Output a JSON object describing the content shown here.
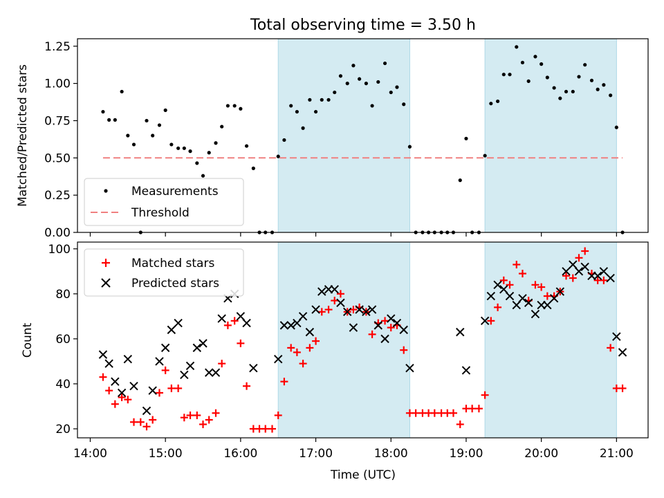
{
  "chart_data": {
    "type": "scatter",
    "title": "Total observing time = 3.50 h",
    "xlabel": "Time (UTC)",
    "x_ticks": [
      "14:00",
      "15:00",
      "16:00",
      "17:00",
      "18:00",
      "19:00",
      "20:00",
      "21:00"
    ],
    "x_range_hours": [
      13.83,
      21.42
    ],
    "shaded_intervals_hours": [
      [
        16.5,
        18.25
      ],
      [
        19.25,
        21.0
      ]
    ],
    "shade_color": "#add8e6",
    "top": {
      "ylabel": "Matched/Predicted stars",
      "ylim": [
        0,
        1.3
      ],
      "y_ticks": [
        "0.00",
        "0.25",
        "0.50",
        "0.75",
        "1.00",
        "1.25"
      ],
      "threshold": 0.5,
      "threshold_x_range_hours": [
        14.17,
        21.08
      ],
      "legend": {
        "placement": "lower-left",
        "entries": [
          "Measurements",
          "Threshold"
        ]
      },
      "measurement_color": "#000000",
      "threshold_color": "#f08080",
      "measurements": [
        [
          14.17,
          0.81
        ],
        [
          14.25,
          0.755
        ],
        [
          14.33,
          0.755
        ],
        [
          14.42,
          0.945
        ],
        [
          14.5,
          0.65
        ],
        [
          14.58,
          0.59
        ],
        [
          14.67,
          0.0
        ],
        [
          14.75,
          0.75
        ],
        [
          14.83,
          0.65
        ],
        [
          14.92,
          0.72
        ],
        [
          15.0,
          0.82
        ],
        [
          15.08,
          0.59
        ],
        [
          15.17,
          0.565
        ],
        [
          15.25,
          0.565
        ],
        [
          15.33,
          0.545
        ],
        [
          15.42,
          0.465
        ],
        [
          15.5,
          0.38
        ],
        [
          15.58,
          0.535
        ],
        [
          15.67,
          0.6
        ],
        [
          15.75,
          0.71
        ],
        [
          15.83,
          0.85
        ],
        [
          15.92,
          0.85
        ],
        [
          16.0,
          0.83
        ],
        [
          16.08,
          0.58
        ],
        [
          16.17,
          0.43
        ],
        [
          16.25,
          0.0
        ],
        [
          16.33,
          0.0
        ],
        [
          16.42,
          0.0
        ],
        [
          16.5,
          0.51
        ],
        [
          16.58,
          0.62
        ],
        [
          16.67,
          0.85
        ],
        [
          16.75,
          0.81
        ],
        [
          16.83,
          0.7
        ],
        [
          16.92,
          0.89
        ],
        [
          17.0,
          0.81
        ],
        [
          17.08,
          0.89
        ],
        [
          17.17,
          0.89
        ],
        [
          17.25,
          0.94
        ],
        [
          17.33,
          1.05
        ],
        [
          17.42,
          1.0
        ],
        [
          17.5,
          1.12
        ],
        [
          17.58,
          1.03
        ],
        [
          17.67,
          1.0
        ],
        [
          17.75,
          0.85
        ],
        [
          17.83,
          1.01
        ],
        [
          17.92,
          1.135
        ],
        [
          18.0,
          0.94
        ],
        [
          18.08,
          0.975
        ],
        [
          18.17,
          0.86
        ],
        [
          18.25,
          0.575
        ],
        [
          18.33,
          0.0
        ],
        [
          18.42,
          0.0
        ],
        [
          18.5,
          0.0
        ],
        [
          18.58,
          0.0
        ],
        [
          18.67,
          0.0
        ],
        [
          18.75,
          0.0
        ],
        [
          18.83,
          0.0
        ],
        [
          18.92,
          0.35
        ],
        [
          19.0,
          0.63
        ],
        [
          19.08,
          0.0
        ],
        [
          19.17,
          0.0
        ],
        [
          19.25,
          0.515
        ],
        [
          19.33,
          0.865
        ],
        [
          19.42,
          0.88
        ],
        [
          19.5,
          1.06
        ],
        [
          19.58,
          1.06
        ],
        [
          19.67,
          1.245
        ],
        [
          19.75,
          1.14
        ],
        [
          19.83,
          1.015
        ],
        [
          19.92,
          1.18
        ],
        [
          20.0,
          1.13
        ],
        [
          20.08,
          1.04
        ],
        [
          20.17,
          0.97
        ],
        [
          20.25,
          0.9
        ],
        [
          20.33,
          0.945
        ],
        [
          20.42,
          0.945
        ],
        [
          20.5,
          1.045
        ],
        [
          20.58,
          1.125
        ],
        [
          20.67,
          1.02
        ],
        [
          20.75,
          0.96
        ],
        [
          20.83,
          0.99
        ],
        [
          20.92,
          0.92
        ],
        [
          21.0,
          0.705
        ],
        [
          21.08,
          0.0
        ]
      ]
    },
    "bottom": {
      "ylabel": "Count",
      "ylim": [
        16,
        103
      ],
      "y_ticks": [
        "20",
        "40",
        "60",
        "80",
        "100"
      ],
      "legend": {
        "placement": "upper-left",
        "entries": [
          "Matched stars",
          "Predicted stars"
        ]
      },
      "series": [
        {
          "name": "Matched stars",
          "marker": "plus",
          "color": "#ff0000",
          "points": [
            [
              14.17,
              43
            ],
            [
              14.25,
              37
            ],
            [
              14.33,
              31
            ],
            [
              14.42,
              34
            ],
            [
              14.5,
              33
            ],
            [
              14.58,
              23
            ],
            [
              14.67,
              23
            ],
            [
              14.75,
              21
            ],
            [
              14.83,
              24
            ],
            [
              14.92,
              36
            ],
            [
              15.0,
              46
            ],
            [
              15.08,
              38
            ],
            [
              15.17,
              38
            ],
            [
              15.25,
              25
            ],
            [
              15.33,
              26
            ],
            [
              15.42,
              26
            ],
            [
              15.5,
              22
            ],
            [
              15.58,
              24
            ],
            [
              15.67,
              27
            ],
            [
              15.75,
              49
            ],
            [
              15.83,
              66
            ],
            [
              15.92,
              68
            ],
            [
              16.0,
              58
            ],
            [
              16.08,
              39
            ],
            [
              16.17,
              20
            ],
            [
              16.25,
              20
            ],
            [
              16.33,
              20
            ],
            [
              16.42,
              20
            ],
            [
              16.5,
              26
            ],
            [
              16.58,
              41
            ],
            [
              16.67,
              56
            ],
            [
              16.75,
              54
            ],
            [
              16.83,
              49
            ],
            [
              16.92,
              56
            ],
            [
              17.0,
              59
            ],
            [
              17.08,
              72
            ],
            [
              17.17,
              73
            ],
            [
              17.25,
              77
            ],
            [
              17.33,
              80
            ],
            [
              17.42,
              72
            ],
            [
              17.5,
              73
            ],
            [
              17.58,
              74
            ],
            [
              17.67,
              72
            ],
            [
              17.75,
              62
            ],
            [
              17.83,
              67
            ],
            [
              17.92,
              68
            ],
            [
              18.0,
              65
            ],
            [
              18.08,
              66
            ],
            [
              18.17,
              55
            ],
            [
              18.25,
              27
            ],
            [
              18.33,
              27
            ],
            [
              18.42,
              27
            ],
            [
              18.5,
              27
            ],
            [
              18.58,
              27
            ],
            [
              18.67,
              27
            ],
            [
              18.75,
              27
            ],
            [
              18.83,
              27
            ],
            [
              18.92,
              22
            ],
            [
              19.0,
              29
            ],
            [
              19.08,
              29
            ],
            [
              19.17,
              29
            ],
            [
              19.25,
              35
            ],
            [
              19.33,
              68
            ],
            [
              19.42,
              74
            ],
            [
              19.5,
              86
            ],
            [
              19.58,
              84
            ],
            [
              19.67,
              93
            ],
            [
              19.75,
              89
            ],
            [
              19.83,
              77
            ],
            [
              19.92,
              84
            ],
            [
              20.0,
              83
            ],
            [
              20.08,
              79
            ],
            [
              20.17,
              79
            ],
            [
              20.25,
              81
            ],
            [
              20.33,
              88
            ],
            [
              20.42,
              87
            ],
            [
              20.5,
              96
            ],
            [
              20.58,
              99
            ],
            [
              20.67,
              89
            ],
            [
              20.75,
              86
            ],
            [
              20.83,
              86
            ],
            [
              20.92,
              56
            ],
            [
              21.0,
              38
            ],
            [
              21.08,
              38
            ]
          ]
        },
        {
          "name": "Predicted stars",
          "marker": "x",
          "color": "#000000",
          "points": [
            [
              14.17,
              53
            ],
            [
              14.25,
              49
            ],
            [
              14.33,
              41
            ],
            [
              14.42,
              36
            ],
            [
              14.5,
              51
            ],
            [
              14.58,
              39
            ],
            [
              14.75,
              28
            ],
            [
              14.83,
              37
            ],
            [
              14.92,
              50
            ],
            [
              15.0,
              56
            ],
            [
              15.08,
              64
            ],
            [
              15.17,
              67
            ],
            [
              15.25,
              44
            ],
            [
              15.33,
              48
            ],
            [
              15.42,
              56
            ],
            [
              15.5,
              58
            ],
            [
              15.58,
              45
            ],
            [
              15.67,
              45
            ],
            [
              15.75,
              69
            ],
            [
              15.83,
              78
            ],
            [
              15.92,
              80
            ],
            [
              16.0,
              70
            ],
            [
              16.08,
              67
            ],
            [
              16.17,
              47
            ],
            [
              16.5,
              51
            ],
            [
              16.58,
              66
            ],
            [
              16.67,
              66
            ],
            [
              16.75,
              67
            ],
            [
              16.83,
              70
            ],
            [
              16.92,
              63
            ],
            [
              17.0,
              73
            ],
            [
              17.08,
              81
            ],
            [
              17.17,
              82
            ],
            [
              17.25,
              82
            ],
            [
              17.33,
              76
            ],
            [
              17.42,
              72
            ],
            [
              17.5,
              65
            ],
            [
              17.58,
              73
            ],
            [
              17.67,
              72
            ],
            [
              17.75,
              73
            ],
            [
              17.83,
              66
            ],
            [
              17.92,
              60
            ],
            [
              18.0,
              69
            ],
            [
              18.08,
              67
            ],
            [
              18.17,
              64
            ],
            [
              18.25,
              47
            ],
            [
              18.92,
              63
            ],
            [
              19.0,
              46
            ],
            [
              19.25,
              68
            ],
            [
              19.33,
              79
            ],
            [
              19.42,
              84
            ],
            [
              19.5,
              82
            ],
            [
              19.58,
              79
            ],
            [
              19.67,
              75
            ],
            [
              19.75,
              78
            ],
            [
              19.83,
              76
            ],
            [
              19.92,
              71
            ],
            [
              20.0,
              75
            ],
            [
              20.08,
              75
            ],
            [
              20.17,
              78
            ],
            [
              20.25,
              81
            ],
            [
              20.33,
              90
            ],
            [
              20.42,
              93
            ],
            [
              20.5,
              90
            ],
            [
              20.58,
              92
            ],
            [
              20.67,
              88
            ],
            [
              20.75,
              88
            ],
            [
              20.83,
              90
            ],
            [
              20.92,
              87
            ],
            [
              21.0,
              61
            ],
            [
              21.08,
              54
            ]
          ]
        }
      ]
    }
  }
}
